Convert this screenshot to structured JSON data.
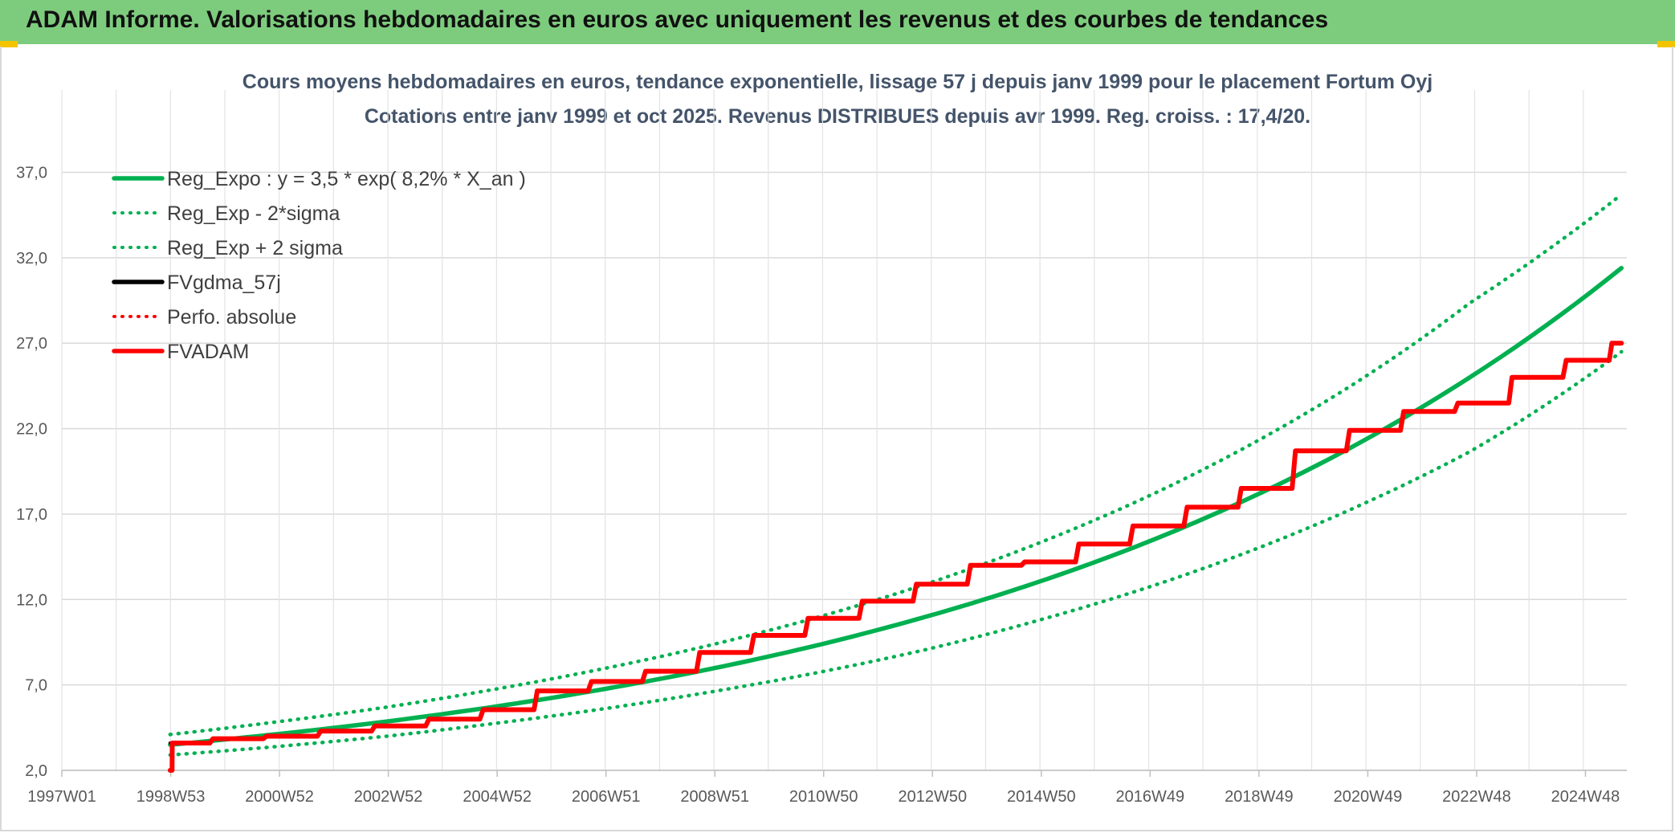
{
  "header": {
    "title": "ADAM Informe. Valorisations hebdomadaires en euros avec uniquement les revenus et des courbes de tendances"
  },
  "chart_data": {
    "type": "line",
    "title": "Cours moyens hebdomadaires en euros, tendance exponentielle, lissage 57 j depuis janv 1999 pour le placement Fortum Oyj",
    "subtitle": "Cotations entre janv 1999 et oct 2025. Revenus DISTRIBUES depuis avr 1999.  Reg. croiss. : 17,4/20.",
    "xlabel": "",
    "ylabel": "",
    "x_ticks": [
      "1997W01",
      "1998W53",
      "2000W52",
      "2002W52",
      "2004W52",
      "2006W51",
      "2008W51",
      "2010W50",
      "2012W50",
      "2014W50",
      "2016W49",
      "2018W49",
      "2020W49",
      "2022W48",
      "2024W48"
    ],
    "y_ticks": [
      "2,0",
      "7,0",
      "12,0",
      "17,0",
      "22,0",
      "27,0",
      "32,0",
      "37,0"
    ],
    "ylim": [
      2,
      39
    ],
    "xlim": [
      1997,
      2025.9
    ],
    "grid": true,
    "legend_position": "top-left",
    "series": [
      {
        "name": "Reg_Expo : y = 3,5 * exp( 8,2% *  X_an )",
        "color": "#00b050",
        "style": "solid",
        "x": [
          1999,
          2001,
          2003,
          2005,
          2007,
          2009,
          2011,
          2013,
          2015,
          2017,
          2019,
          2021,
          2023,
          2025.8
        ],
        "values": [
          3.5,
          4.13,
          4.86,
          5.73,
          6.75,
          7.95,
          9.36,
          11.03,
          12.99,
          15.3,
          18.03,
          21.23,
          25.0,
          31.4
        ]
      },
      {
        "name": "Reg_Exp - 2*sigma",
        "color": "#00b050",
        "style": "dotted",
        "x": [
          1999,
          2001,
          2003,
          2005,
          2007,
          2009,
          2011,
          2013,
          2015,
          2017,
          2019,
          2021,
          2023,
          2025.8
        ],
        "values": [
          2.9,
          3.4,
          4.0,
          4.75,
          5.6,
          6.6,
          7.75,
          9.1,
          10.75,
          12.65,
          14.9,
          17.55,
          20.65,
          26.5
        ]
      },
      {
        "name": "Reg_Exp + 2 sigma",
        "color": "#00b050",
        "style": "dotted",
        "x": [
          1999,
          2001,
          2003,
          2005,
          2007,
          2009,
          2011,
          2013,
          2015,
          2017,
          2019,
          2021,
          2023,
          2025.8
        ],
        "values": [
          4.1,
          4.85,
          5.7,
          6.75,
          7.95,
          9.35,
          11.0,
          12.95,
          15.25,
          17.95,
          21.15,
          24.9,
          29.35,
          35.7
        ]
      },
      {
        "name": "FVgdma_57j",
        "color": "#000000",
        "style": "solid",
        "x": [
          1999,
          2000,
          2001,
          2002,
          2003,
          2004,
          2005,
          2006,
          2007,
          2008,
          2009,
          2010,
          2011,
          2012,
          2013,
          2014,
          2015,
          2016,
          2017,
          2018,
          2019,
          2020,
          2021,
          2022,
          2023,
          2024,
          2025,
          2025.8
        ],
        "values": [
          3.6,
          3.85,
          4.0,
          4.3,
          4.6,
          5.0,
          5.55,
          6.65,
          7.2,
          7.8,
          8.9,
          9.9,
          10.9,
          11.9,
          12.9,
          14.0,
          14.2,
          15.25,
          16.3,
          17.4,
          18.5,
          20.7,
          21.9,
          23.0,
          23.5,
          25.0,
          26.0,
          27.0
        ]
      },
      {
        "name": "Perfo. absolue",
        "color": "#ff0000",
        "style": "dotted",
        "x": [],
        "values": []
      },
      {
        "name": "FVADAM",
        "color": "#ff0000",
        "style": "solid",
        "x": [
          1999,
          1999.05,
          2000,
          2001,
          2002,
          2003,
          2004,
          2005,
          2006,
          2007,
          2008,
          2009,
          2010,
          2011,
          2012,
          2013,
          2014,
          2015,
          2016,
          2017,
          2018,
          2019,
          2020,
          2021,
          2022,
          2023,
          2024,
          2025,
          2025.8
        ],
        "values": [
          2.0,
          3.6,
          3.85,
          4.0,
          4.3,
          4.6,
          5.0,
          5.55,
          6.65,
          7.2,
          7.8,
          8.9,
          9.9,
          10.9,
          11.9,
          12.9,
          14.0,
          14.2,
          15.25,
          16.3,
          17.4,
          18.5,
          20.7,
          21.9,
          23.0,
          23.5,
          25.0,
          26.0,
          27.0
        ]
      }
    ]
  }
}
